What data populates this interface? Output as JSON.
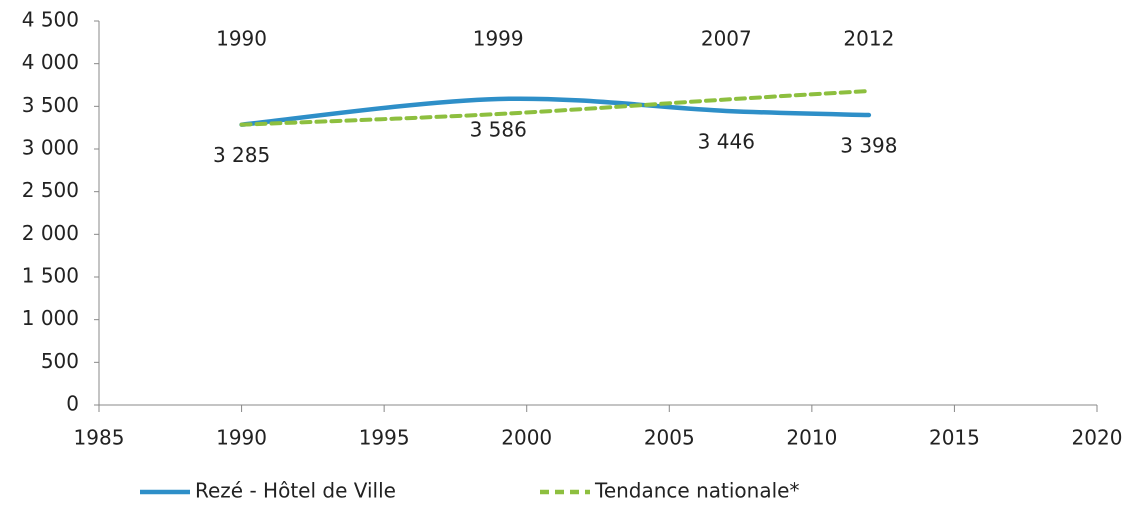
{
  "chart_data": {
    "type": "line",
    "x": [
      1990,
      1999,
      2007,
      2012
    ],
    "series": [
      {
        "name": "Rezé - Hôtel de Ville",
        "color": "#2e8fc8",
        "dashed": false,
        "values": [
          3285,
          3586,
          3446,
          3398
        ],
        "value_labels": [
          "3 285",
          "3 586",
          "3 446",
          "3 398"
        ]
      },
      {
        "name": "Tendance nationale*",
        "color": "#8dbf3f",
        "dashed": true,
        "values": [
          3285,
          3410,
          3580,
          3680
        ]
      }
    ],
    "xlim": [
      1985,
      2020
    ],
    "xticks": [
      1985,
      1990,
      1995,
      2000,
      2005,
      2010,
      2015,
      2020
    ],
    "ylim": [
      0,
      4500
    ],
    "yticks": [
      0,
      500,
      {
        "value": 1000,
        "label": "1 000"
      },
      {
        "value": 1500,
        "label": "1 500"
      },
      {
        "value": 2000,
        "label": "2 000"
      },
      {
        "value": 2500,
        "label": "2 500"
      },
      {
        "value": 3000,
        "label": "3 000"
      },
      {
        "value": 3500,
        "label": "3 500"
      },
      {
        "value": 4000,
        "label": "4 000"
      },
      {
        "value": 4500,
        "label": "4 500"
      }
    ],
    "grid": false
  }
}
